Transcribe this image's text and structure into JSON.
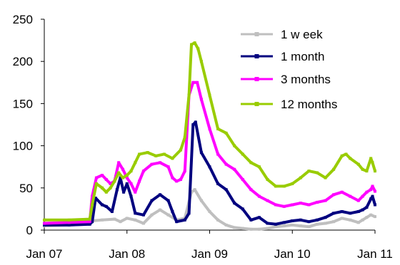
{
  "chart_data": {
    "type": "line",
    "title": "",
    "xlabel": "",
    "ylabel": "",
    "ylim": [
      0,
      250
    ],
    "yticks": [
      0,
      50,
      100,
      150,
      200,
      250
    ],
    "xlim": [
      2007.0,
      2011.0
    ],
    "xticks": [
      {
        "label": "Jan 07",
        "t": 2007.0
      },
      {
        "label": "Jan 08",
        "t": 2008.0
      },
      {
        "label": "Jan 09",
        "t": 2009.0
      },
      {
        "label": "Jan 10",
        "t": 2010.0
      },
      {
        "label": "Jan 11",
        "t": 2011.0
      }
    ],
    "grid": false,
    "legend_position": "top-right",
    "series": [
      {
        "name": "1 w eek",
        "color": "#bfbfbf",
        "points": [
          [
            2007.0,
            5
          ],
          [
            2007.3,
            6
          ],
          [
            2007.55,
            7
          ],
          [
            2007.58,
            11
          ],
          [
            2007.7,
            12
          ],
          [
            2007.85,
            13
          ],
          [
            2007.92,
            10
          ],
          [
            2008.0,
            14
          ],
          [
            2008.1,
            12
          ],
          [
            2008.2,
            8
          ],
          [
            2008.3,
            18
          ],
          [
            2008.4,
            24
          ],
          [
            2008.5,
            18
          ],
          [
            2008.6,
            12
          ],
          [
            2008.7,
            14
          ],
          [
            2008.78,
            45
          ],
          [
            2008.82,
            48
          ],
          [
            2008.9,
            35
          ],
          [
            2009.0,
            22
          ],
          [
            2009.1,
            12
          ],
          [
            2009.2,
            6
          ],
          [
            2009.3,
            3
          ],
          [
            2009.4,
            2
          ],
          [
            2009.5,
            1
          ],
          [
            2009.6,
            1
          ],
          [
            2009.7,
            2
          ],
          [
            2009.8,
            4
          ],
          [
            2009.9,
            5
          ],
          [
            2010.0,
            6
          ],
          [
            2010.1,
            5
          ],
          [
            2010.2,
            4
          ],
          [
            2010.3,
            7
          ],
          [
            2010.4,
            8
          ],
          [
            2010.5,
            10
          ],
          [
            2010.6,
            14
          ],
          [
            2010.7,
            12
          ],
          [
            2010.8,
            9
          ],
          [
            2010.85,
            12
          ],
          [
            2010.9,
            15
          ],
          [
            2010.95,
            18
          ],
          [
            2011.0,
            16
          ]
        ]
      },
      {
        "name": "1 month",
        "color": "#00007f",
        "points": [
          [
            2007.0,
            6
          ],
          [
            2007.3,
            6
          ],
          [
            2007.55,
            7
          ],
          [
            2007.58,
            10
          ],
          [
            2007.62,
            38
          ],
          [
            2007.7,
            30
          ],
          [
            2007.75,
            28
          ],
          [
            2007.82,
            22
          ],
          [
            2007.88,
            48
          ],
          [
            2007.92,
            62
          ],
          [
            2007.96,
            45
          ],
          [
            2008.0,
            55
          ],
          [
            2008.05,
            40
          ],
          [
            2008.1,
            20
          ],
          [
            2008.2,
            18
          ],
          [
            2008.3,
            35
          ],
          [
            2008.4,
            42
          ],
          [
            2008.5,
            35
          ],
          [
            2008.55,
            22
          ],
          [
            2008.6,
            10
          ],
          [
            2008.7,
            12
          ],
          [
            2008.75,
            20
          ],
          [
            2008.8,
            125
          ],
          [
            2008.83,
            128
          ],
          [
            2008.9,
            92
          ],
          [
            2009.0,
            75
          ],
          [
            2009.1,
            55
          ],
          [
            2009.2,
            48
          ],
          [
            2009.3,
            32
          ],
          [
            2009.4,
            25
          ],
          [
            2009.5,
            12
          ],
          [
            2009.6,
            15
          ],
          [
            2009.7,
            8
          ],
          [
            2009.8,
            7
          ],
          [
            2009.9,
            9
          ],
          [
            2010.0,
            11
          ],
          [
            2010.1,
            12
          ],
          [
            2010.2,
            10
          ],
          [
            2010.3,
            12
          ],
          [
            2010.4,
            15
          ],
          [
            2010.5,
            20
          ],
          [
            2010.6,
            22
          ],
          [
            2010.7,
            20
          ],
          [
            2010.8,
            22
          ],
          [
            2010.85,
            24
          ],
          [
            2010.9,
            27
          ],
          [
            2010.95,
            37
          ],
          [
            2010.97,
            40
          ],
          [
            2011.0,
            30
          ]
        ]
      },
      {
        "name": "3 months",
        "color": "#ff00ff",
        "points": [
          [
            2007.0,
            8
          ],
          [
            2007.3,
            9
          ],
          [
            2007.55,
            10
          ],
          [
            2007.58,
            40
          ],
          [
            2007.63,
            62
          ],
          [
            2007.7,
            65
          ],
          [
            2007.75,
            60
          ],
          [
            2007.8,
            55
          ],
          [
            2007.85,
            58
          ],
          [
            2007.9,
            80
          ],
          [
            2007.95,
            72
          ],
          [
            2008.0,
            62
          ],
          [
            2008.05,
            55
          ],
          [
            2008.1,
            45
          ],
          [
            2008.15,
            58
          ],
          [
            2008.2,
            70
          ],
          [
            2008.3,
            78
          ],
          [
            2008.4,
            80
          ],
          [
            2008.5,
            75
          ],
          [
            2008.55,
            62
          ],
          [
            2008.6,
            58
          ],
          [
            2008.65,
            60
          ],
          [
            2008.7,
            70
          ],
          [
            2008.75,
            160
          ],
          [
            2008.8,
            175
          ],
          [
            2008.85,
            175
          ],
          [
            2008.9,
            155
          ],
          [
            2009.0,
            120
          ],
          [
            2009.1,
            90
          ],
          [
            2009.2,
            78
          ],
          [
            2009.3,
            72
          ],
          [
            2009.4,
            60
          ],
          [
            2009.5,
            48
          ],
          [
            2009.6,
            40
          ],
          [
            2009.7,
            35
          ],
          [
            2009.8,
            30
          ],
          [
            2009.9,
            28
          ],
          [
            2010.0,
            30
          ],
          [
            2010.1,
            32
          ],
          [
            2010.2,
            30
          ],
          [
            2010.3,
            33
          ],
          [
            2010.4,
            35
          ],
          [
            2010.5,
            42
          ],
          [
            2010.6,
            45
          ],
          [
            2010.7,
            40
          ],
          [
            2010.8,
            35
          ],
          [
            2010.85,
            40
          ],
          [
            2010.9,
            45
          ],
          [
            2010.95,
            48
          ],
          [
            2010.97,
            52
          ],
          [
            2011.0,
            46
          ]
        ]
      },
      {
        "name": "12 months",
        "color": "#99cc00",
        "points": [
          [
            2007.0,
            12
          ],
          [
            2007.3,
            12
          ],
          [
            2007.55,
            13
          ],
          [
            2007.58,
            30
          ],
          [
            2007.63,
            55
          ],
          [
            2007.7,
            50
          ],
          [
            2007.75,
            45
          ],
          [
            2007.8,
            50
          ],
          [
            2007.85,
            58
          ],
          [
            2007.9,
            68
          ],
          [
            2007.95,
            62
          ],
          [
            2008.0,
            65
          ],
          [
            2008.05,
            70
          ],
          [
            2008.1,
            80
          ],
          [
            2008.15,
            90
          ],
          [
            2008.25,
            92
          ],
          [
            2008.35,
            88
          ],
          [
            2008.45,
            90
          ],
          [
            2008.55,
            85
          ],
          [
            2008.65,
            95
          ],
          [
            2008.7,
            110
          ],
          [
            2008.75,
            160
          ],
          [
            2008.78,
            220
          ],
          [
            2008.82,
            222
          ],
          [
            2008.86,
            215
          ],
          [
            2008.9,
            200
          ],
          [
            2009.0,
            160
          ],
          [
            2009.1,
            120
          ],
          [
            2009.2,
            115
          ],
          [
            2009.3,
            100
          ],
          [
            2009.4,
            90
          ],
          [
            2009.5,
            80
          ],
          [
            2009.6,
            75
          ],
          [
            2009.7,
            60
          ],
          [
            2009.8,
            52
          ],
          [
            2009.9,
            52
          ],
          [
            2010.0,
            55
          ],
          [
            2010.1,
            62
          ],
          [
            2010.2,
            70
          ],
          [
            2010.3,
            68
          ],
          [
            2010.4,
            62
          ],
          [
            2010.5,
            72
          ],
          [
            2010.6,
            88
          ],
          [
            2010.65,
            90
          ],
          [
            2010.7,
            85
          ],
          [
            2010.8,
            78
          ],
          [
            2010.85,
            72
          ],
          [
            2010.9,
            70
          ],
          [
            2010.95,
            85
          ],
          [
            2010.97,
            80
          ],
          [
            2011.0,
            70
          ]
        ]
      }
    ]
  }
}
